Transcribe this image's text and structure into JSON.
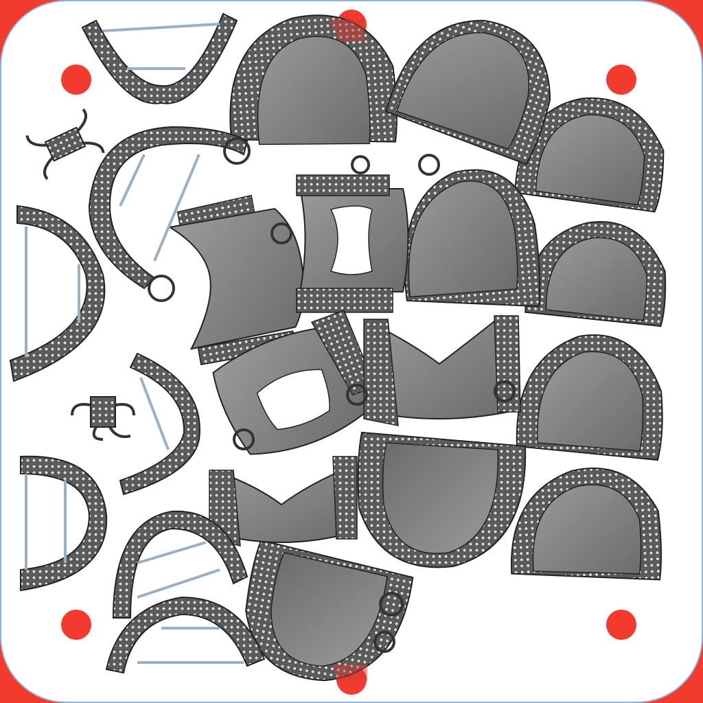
{
  "scene": {
    "kind": "3D print build-plate nesting view",
    "colors": {
      "plate": "#ffffff",
      "plate_border": "#8fb3d9",
      "corner_fill": "#f23a2e",
      "marker": "#f23a2e",
      "part_fill": "#8a8a8a",
      "part_fill_dark": "#6e6e6e",
      "part_stroke": "#2a2a2a",
      "mesh_border_fill": "#5c5c5c",
      "mesh_hole": "#d8d8d8",
      "support_rod": "#9ab0c6"
    },
    "markers": [
      "top-left",
      "top-right",
      "bottom-left",
      "bottom-right",
      "top-center",
      "bottom-center"
    ],
    "parts": [
      {
        "name": "full-palate-baseplate",
        "count": 9
      },
      {
        "name": "horseshoe-mandibular-framework",
        "count": 6
      },
      {
        "name": "cut-out-palatal-framework",
        "count": 4
      },
      {
        "name": "small-clasp-piece",
        "count": 2
      },
      {
        "name": "lingual-bar-framework",
        "count": 4
      }
    ]
  }
}
